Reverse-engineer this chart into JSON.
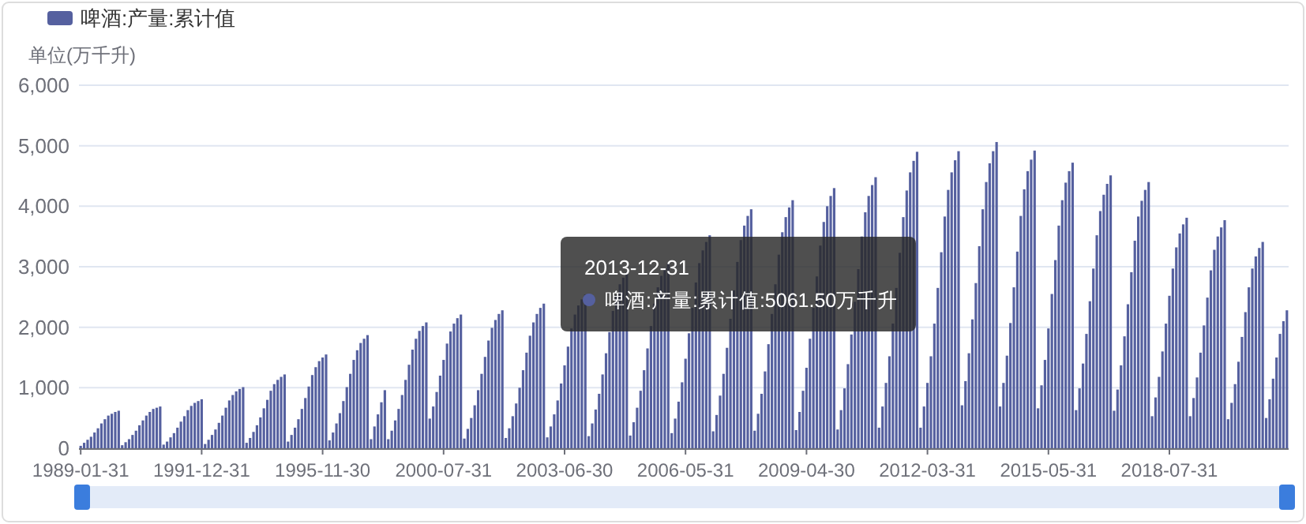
{
  "chart_data": {
    "type": "bar",
    "ylabel": "单位(万千升)",
    "legend": "top left",
    "grid": "y",
    "ylim": [
      0,
      6000
    ],
    "yticks": [
      0,
      {
        "value": 1000,
        "label": "1,000"
      },
      {
        "value": 2000,
        "label": "2,000"
      },
      {
        "value": 3000,
        "label": "3,000"
      },
      {
        "value": 4000,
        "label": "4,000"
      },
      {
        "value": 5000,
        "label": "5,000"
      },
      {
        "value": 6000,
        "label": "6,000"
      }
    ],
    "annotations": [
      "2013-12-31",
      "啤酒:产量:累计值:5061.50万千升"
    ],
    "categories": [
      "1989-01-31",
      null,
      null,
      null,
      null,
      null,
      null,
      null,
      null,
      null,
      null,
      null,
      null,
      null,
      null,
      null,
      null,
      null,
      null,
      null,
      null,
      null,
      null,
      null,
      null,
      null,
      null,
      null,
      null,
      null,
      null,
      null,
      null,
      null,
      null,
      "1991-12-31",
      null,
      null,
      null,
      null,
      null,
      null,
      null,
      null,
      null,
      null,
      null,
      null,
      null,
      null,
      null,
      null,
      null,
      null,
      null,
      null,
      null,
      null,
      null,
      null,
      null,
      null,
      null,
      null,
      null,
      null,
      null,
      null,
      null,
      null,
      "1995-11-30",
      null,
      null,
      null,
      null,
      null,
      null,
      null,
      null,
      null,
      null,
      null,
      null,
      null,
      null,
      null,
      null,
      null,
      null,
      null,
      null,
      null,
      null,
      null,
      null,
      null,
      null,
      null,
      null,
      null,
      null,
      null,
      null,
      null,
      null,
      "2000-07-31",
      null,
      null,
      null,
      null,
      null,
      null,
      null,
      null,
      null,
      null,
      null,
      null,
      null,
      null,
      null,
      null,
      null,
      null,
      null,
      null,
      null,
      null,
      null,
      null,
      null,
      null,
      null,
      null,
      null,
      null,
      null,
      null,
      null,
      null,
      "2003-06-30",
      null,
      null,
      null,
      null,
      null,
      null,
      null,
      null,
      null,
      null,
      null,
      null,
      null,
      null,
      null,
      null,
      null,
      null,
      null,
      null,
      null,
      null,
      null,
      null,
      null,
      null,
      null,
      null,
      null,
      null,
      null,
      null,
      null,
      null,
      "2006-05-31",
      null,
      null,
      null,
      null,
      null,
      null,
      null,
      null,
      null,
      null,
      null,
      null,
      null,
      null,
      null,
      null,
      null,
      null,
      null,
      null,
      null,
      null,
      null,
      null,
      null,
      null,
      null,
      null,
      null,
      null,
      null,
      null,
      null,
      null,
      "2009-04-30",
      null,
      null,
      null,
      null,
      null,
      null,
      null,
      null,
      null,
      null,
      null,
      null,
      null,
      null,
      null,
      null,
      null,
      null,
      null,
      null,
      null,
      null,
      null,
      null,
      null,
      null,
      null,
      null,
      null,
      null,
      null,
      null,
      null,
      null,
      "2012-03-31",
      null,
      null,
      null,
      null,
      null,
      null,
      null,
      null,
      null,
      null,
      null,
      null,
      null,
      null,
      null,
      null,
      null,
      null,
      null,
      null,
      null,
      null,
      null,
      null,
      null,
      null,
      null,
      null,
      null,
      null,
      null,
      null,
      null,
      null,
      "2015-05-31",
      null,
      null,
      null,
      null,
      null,
      null,
      null,
      null,
      null,
      null,
      null,
      null,
      null,
      null,
      null,
      null,
      null,
      null,
      null,
      null,
      null,
      null,
      null,
      null,
      null,
      null,
      null,
      null,
      null,
      null,
      null,
      null,
      null,
      null,
      "2018-07-31",
      null,
      null,
      null,
      null,
      null,
      null,
      null,
      null,
      null,
      null,
      null,
      null,
      null,
      null,
      null,
      null,
      null,
      null,
      null,
      null,
      null,
      null,
      null,
      null,
      null,
      null,
      null,
      null,
      null,
      null,
      null,
      null,
      null,
      null
    ],
    "series": [
      {
        "name": "啤酒:产量:累计值",
        "color": "#55609f",
        "values": [
          40,
          90,
          140,
          190,
          260,
          330,
          410,
          480,
          540,
          570,
          600,
          620,
          50,
          100,
          150,
          220,
          290,
          380,
          460,
          540,
          600,
          650,
          670,
          690,
          60,
          110,
          180,
          250,
          340,
          440,
          530,
          630,
          700,
          750,
          780,
          810,
          70,
          140,
          220,
          310,
          420,
          540,
          670,
          790,
          880,
          940,
          980,
          1010,
          90,
          170,
          270,
          380,
          510,
          660,
          800,
          950,
          1060,
          1130,
          1180,
          1220,
          110,
          220,
          340,
          480,
          650,
          830,
          1020,
          1210,
          1340,
          1440,
          1500,
          1550,
          130,
          260,
          410,
          580,
          780,
          1010,
          1230,
          1460,
          1620,
          1740,
          1810,
          1870,
          150,
          360,
          560,
          760,
          960,
          150,
          290,
          460,
          650,
          880,
          1130,
          1380,
          1630,
          1810,
          1940,
          2020,
          2080,
          490,
          690,
          930,
          1200,
          1460,
          1730,
          1930,
          2060,
          2150,
          2210,
          160,
          320,
          500,
          710,
          960,
          1230,
          1510,
          1780,
          1990,
          2120,
          2220,
          2280,
          170,
          330,
          530,
          740,
          1000,
          1290,
          1580,
          1860,
          2080,
          2220,
          2320,
          2390,
          180,
          360,
          560,
          790,
          1070,
          1370,
          1680,
          1980,
          2210,
          2360,
          2460,
          2540,
          200,
          410,
          640,
          900,
          1220,
          1570,
          1920,
          2270,
          2530,
          2710,
          2820,
          2910,
          210,
          430,
          670,
          950,
          1290,
          1650,
          2020,
          2390,
          2660,
          2850,
          2970,
          3060,
          250,
          490,
          770,
          1090,
          1480,
          1900,
          2320,
          2740,
          3060,
          3270,
          3410,
          3520,
          280,
          550,
          870,
          1230,
          1660,
          2140,
          2610,
          3080,
          3440,
          3680,
          3840,
          3950,
          290,
          570,
          900,
          1270,
          1720,
          2220,
          2710,
          3200,
          3570,
          3820,
          3980,
          4100,
          300,
          600,
          950,
          1330,
          1810,
          2320,
          2840,
          3350,
          3740,
          4000,
          4170,
          4300,
          310,
          630,
          990,
          1390,
          1880,
          2420,
          2960,
          3500,
          3900,
          4170,
          4350,
          4480,
          340,
          690,
          1080,
          1520,
          2060,
          2650,
          3230,
          3820,
          4260,
          4560,
          4750,
          4900,
          340,
          690,
          1080,
          1520,
          2060,
          2650,
          3240,
          3830,
          4270,
          4560,
          4760,
          4910,
          710,
          1110,
          1570,
          2130,
          2730,
          3340,
          3950,
          4400,
          4710,
          4910,
          5061.5,
          690,
          1080,
          1530,
          2070,
          2660,
          3250,
          3840,
          4280,
          4580,
          4770,
          4920,
          660,
          1040,
          1460,
          1980,
          2550,
          3110,
          3680,
          4100,
          4390,
          4580,
          4720,
          630,
          990,
          1400,
          1890,
          2430,
          2970,
          3520,
          3920,
          4190,
          4370,
          4510,
          620,
          970,
          1370,
          1850,
          2380,
          2910,
          3430,
          3830,
          4090,
          4270,
          4400,
          530,
          840,
          1180,
          1600,
          2060,
          2520,
          2970,
          3320,
          3550,
          3700,
          3810,
          530,
          830,
          1170,
          1580,
          2030,
          2490,
          2940,
          3280,
          3500,
          3650,
          3770,
          480,
          750,
          1060,
          1430,
          1840,
          2250,
          2660,
          2970,
          3170,
          3310,
          3410,
          500,
          810,
          1150,
          1500,
          1890,
          2100,
          2280
        ]
      }
    ]
  }
}
